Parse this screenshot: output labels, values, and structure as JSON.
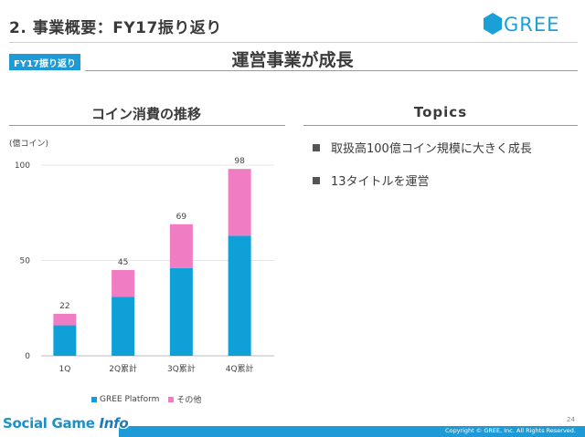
{
  "header": {
    "title": "2. 事業概要：FY17振り返り",
    "logo_text": "GREE"
  },
  "tag": "FY17振り返り",
  "subtitle": "運営事業が成長",
  "chart_section": {
    "heading": "コイン消費の推移",
    "unit_label": "(億コイン)"
  },
  "topics": {
    "heading": "Topics",
    "items": [
      "取扱高100億コイン規模に大きく成長",
      "13タイトルを運営"
    ]
  },
  "chart_data": {
    "type": "bar",
    "stacked": true,
    "title": "コイン消費の推移",
    "ylabel": "(億コイン)",
    "categories": [
      "1Q",
      "2Q累計",
      "3Q累計",
      "4Q累計"
    ],
    "series": [
      {
        "name": "GREE Platform",
        "color": "#0fa0d8",
        "values": [
          16,
          31,
          46,
          63
        ]
      },
      {
        "name": "その他",
        "color": "#f07cc4",
        "values": [
          6,
          14,
          23,
          35
        ]
      }
    ],
    "totals": [
      22,
      45,
      69,
      98
    ],
    "ylim": [
      0,
      100
    ],
    "yticks": [
      0,
      50,
      100
    ],
    "legend": "bottom"
  },
  "footer": {
    "page_number": "24",
    "copyright": "Copyright © GREE, Inc. All Rights Reserved."
  },
  "watermark": {
    "main": "Social Game ",
    "info": "Info"
  },
  "colors": {
    "accent": "#1e9bd7",
    "gree_platform": "#0fa0d8",
    "other": "#f07cc4"
  }
}
